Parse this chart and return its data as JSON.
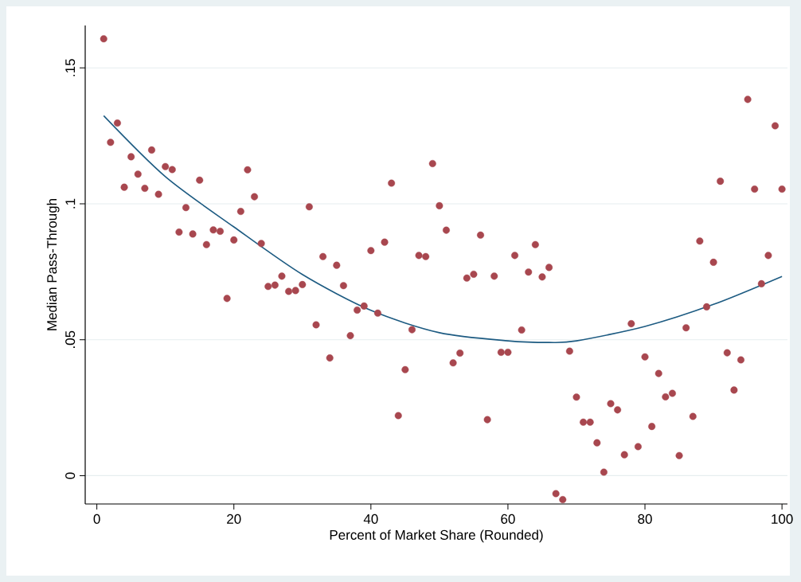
{
  "chart_data": {
    "type": "scatter",
    "xlabel": "Percent of Market Share (Rounded)",
    "ylabel": "Median Pass-Through",
    "xlim": [
      -1.7,
      100.8
    ],
    "ylim": [
      -0.0104,
      0.1656
    ],
    "xticks": [
      0,
      20,
      40,
      60,
      80,
      100
    ],
    "yticks": [
      {
        "value": 0,
        "label": "0"
      },
      {
        "value": 0.05,
        "label": ".05"
      },
      {
        "value": 0.1,
        "label": ".1"
      },
      {
        "value": 0.15,
        "label": ".15"
      }
    ],
    "grid": "y",
    "series": [
      {
        "color": "#a8474f",
        "marker": "circle",
        "x": [
          1,
          2,
          3,
          4,
          5,
          6,
          7,
          8,
          9,
          10,
          11,
          12,
          13,
          14,
          15,
          16,
          17,
          18,
          19,
          20,
          21,
          22,
          23,
          24,
          25,
          26,
          27,
          28,
          29,
          30,
          31,
          32,
          33,
          34,
          35,
          36,
          37,
          38,
          39,
          40,
          41,
          42,
          43,
          44,
          45,
          46,
          47,
          48,
          49,
          50,
          51,
          52,
          53,
          54,
          55,
          56,
          57,
          58,
          59,
          60,
          61,
          62,
          63,
          64,
          65,
          66,
          67,
          68,
          69,
          70,
          71,
          72,
          73,
          74,
          75,
          76,
          77,
          78,
          79,
          80,
          81,
          82,
          83,
          84,
          85,
          86,
          87,
          88,
          89,
          90,
          91,
          92,
          93,
          94,
          95,
          96,
          97,
          98,
          99,
          100
        ],
        "values": [
          0.1607,
          0.1226,
          0.1297,
          0.1061,
          0.1173,
          0.1109,
          0.1057,
          0.1198,
          0.1035,
          0.1137,
          0.1126,
          0.0896,
          0.0986,
          0.0889,
          0.1087,
          0.085,
          0.0904,
          0.0899,
          0.0652,
          0.0867,
          0.0972,
          0.1125,
          0.1026,
          0.0854,
          0.0696,
          0.0701,
          0.0734,
          0.0678,
          0.0681,
          0.0703,
          0.0989,
          0.0555,
          0.0806,
          0.0433,
          0.0774,
          0.0699,
          0.0515,
          0.0609,
          0.0624,
          0.0828,
          0.0598,
          0.0859,
          0.1076,
          0.0221,
          0.039,
          0.0537,
          0.081,
          0.0806,
          0.1148,
          0.0993,
          0.0903,
          0.0415,
          0.0451,
          0.0727,
          0.0741,
          0.0885,
          0.0206,
          0.0734,
          0.0454,
          0.0454,
          0.081,
          0.0536,
          0.0749,
          0.085,
          0.0731,
          0.0766,
          -0.0066,
          -0.0088,
          0.0458,
          0.0289,
          0.0197,
          0.0197,
          0.0121,
          0.0013,
          0.0265,
          0.0242,
          0.0077,
          0.0559,
          0.0107,
          0.0437,
          0.0181,
          0.0376,
          0.029,
          0.0303,
          0.0074,
          0.0544,
          0.0218,
          0.0863,
          0.0621,
          0.0785,
          0.1083,
          0.0452,
          0.0315,
          0.0426,
          0.1384,
          0.1054,
          0.0706,
          0.081,
          0.1287,
          0.1054
        ]
      },
      {
        "type": "line",
        "color": "#1d5b82",
        "marker": "none",
        "x": [
          1,
          10,
          20,
          30,
          40,
          50,
          60,
          66,
          70,
          80,
          90,
          100
        ],
        "values": [
          0.1324,
          0.11,
          0.0915,
          0.074,
          0.0608,
          0.0526,
          0.0496,
          0.049,
          0.0496,
          0.0549,
          0.063,
          0.0733
        ]
      }
    ]
  }
}
